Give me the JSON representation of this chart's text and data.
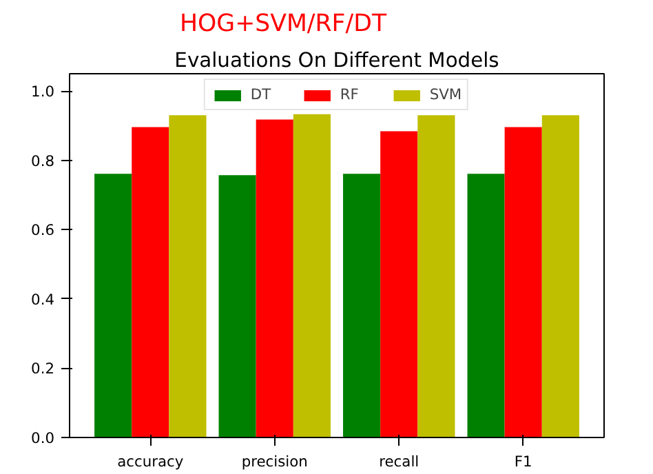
{
  "chart_data": {
    "type": "bar",
    "title": "Evaluations On Different Models",
    "annotations": [
      "HOG+SVM/RF/DT"
    ],
    "categories": [
      "accuracy",
      "precision",
      "recall",
      "F1"
    ],
    "series": [
      {
        "name": "DT",
        "color": "#008000",
        "values": [
          0.761,
          0.757,
          0.761,
          0.761
        ]
      },
      {
        "name": "RF",
        "color": "#ff0000",
        "values": [
          0.896,
          0.918,
          0.884,
          0.896
        ]
      },
      {
        "name": "SVM",
        "color": "#bfbf00",
        "values": [
          0.93,
          0.933,
          0.93,
          0.93
        ]
      }
    ],
    "ylim": [
      0,
      1.05
    ],
    "yticks": [
      {
        "value": 0,
        "label": "0.0"
      },
      0.2,
      0.4,
      0.6,
      0.8,
      {
        "value": 1,
        "label": "1.0"
      }
    ],
    "grid": false,
    "legend": "top"
  }
}
